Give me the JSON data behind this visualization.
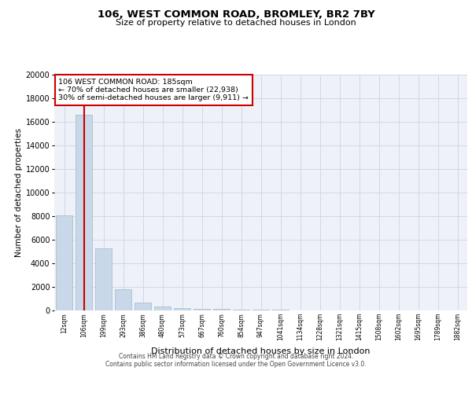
{
  "title1": "106, WEST COMMON ROAD, BROMLEY, BR2 7BY",
  "title2": "Size of property relative to detached houses in London",
  "xlabel": "Distribution of detached houses by size in London",
  "ylabel": "Number of detached properties",
  "categories": [
    "12sqm",
    "106sqm",
    "199sqm",
    "293sqm",
    "386sqm",
    "480sqm",
    "573sqm",
    "667sqm",
    "760sqm",
    "854sqm",
    "947sqm",
    "1041sqm",
    "1134sqm",
    "1228sqm",
    "1321sqm",
    "1415sqm",
    "1508sqm",
    "1602sqm",
    "1695sqm",
    "1789sqm",
    "1882sqm"
  ],
  "values": [
    8100,
    16600,
    5300,
    1800,
    650,
    330,
    185,
    150,
    120,
    100,
    60,
    40,
    30,
    25,
    20,
    15,
    12,
    10,
    8,
    7,
    6
  ],
  "bar_color": "#c8d8e8",
  "bar_edge_color": "#a0b8cc",
  "vline_color": "#cc0000",
  "vline_x": 1,
  "annotation_line1": "106 WEST COMMON ROAD: 185sqm",
  "annotation_line2": "← 70% of detached houses are smaller (22,938)",
  "annotation_line3": "30% of semi-detached houses are larger (9,911) →",
  "annotation_box_edge": "#cc0000",
  "annotation_box_face": "#ffffff",
  "ylim": [
    0,
    20000
  ],
  "yticks": [
    0,
    2000,
    4000,
    6000,
    8000,
    10000,
    12000,
    14000,
    16000,
    18000,
    20000
  ],
  "grid_color": "#d0d8e8",
  "background_color": "#eef2f8",
  "footer1": "Contains HM Land Registry data © Crown copyright and database right 2024.",
  "footer2": "Contains public sector information licensed under the Open Government Licence v3.0."
}
